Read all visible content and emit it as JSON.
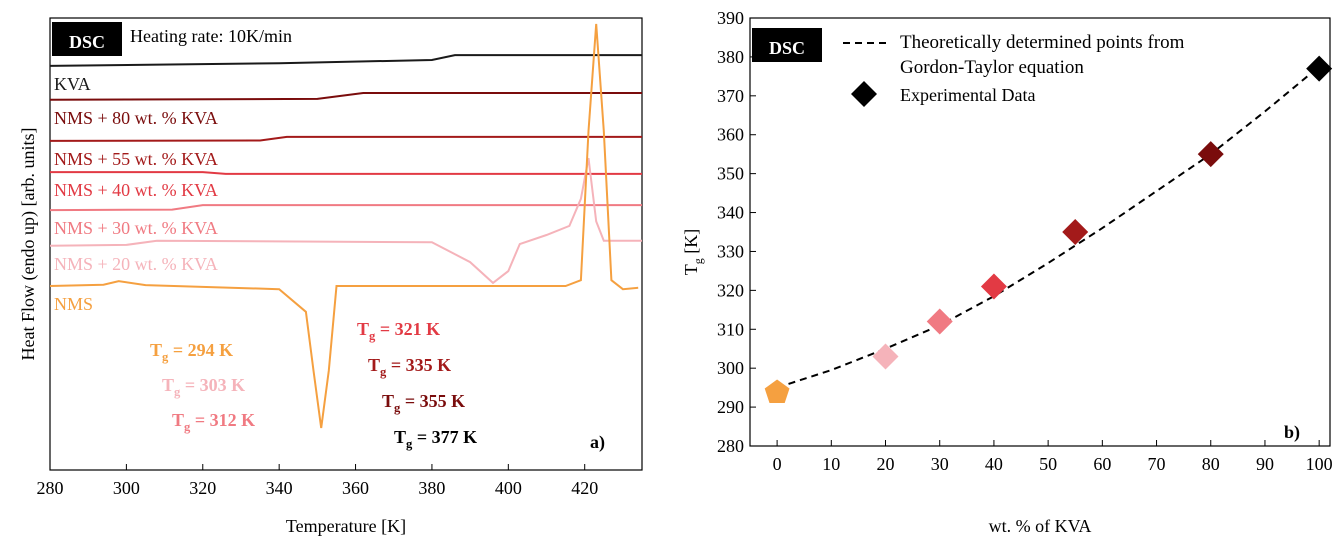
{
  "chart_data": [
    {
      "type": "line",
      "tag": "DSC",
      "note": "Heating rate: 10K/min",
      "panel_label": "a)",
      "xlabel": "Temperature [K]",
      "ylabel": "Heat Flow (endo up) [arb. units]",
      "xlim": [
        280,
        435
      ],
      "xticks": [
        280,
        300,
        320,
        340,
        360,
        380,
        400,
        420
      ],
      "ylim": [
        0,
        100
      ],
      "series": [
        {
          "name": "KVA",
          "color": "#1a1a1a",
          "x": [
            280,
            340,
            380,
            386,
            435
          ],
          "values": [
            89.4,
            90.0,
            90.7,
            91.8,
            91.8
          ]
        },
        {
          "name": "NMS + 80 wt. % KVA",
          "color": "#7a0c0c",
          "x": [
            280,
            350,
            362,
            435
          ],
          "values": [
            81.9,
            82.1,
            83.4,
            83.4
          ]
        },
        {
          "name": "NMS + 55 wt. % KVA",
          "color": "#a31a1a",
          "x": [
            280,
            335,
            342,
            435
          ],
          "values": [
            72.8,
            72.9,
            73.7,
            73.7
          ]
        },
        {
          "name": "NMS + 40 wt. % KVA",
          "color": "#e23a44",
          "x": [
            280,
            320,
            326,
            435
          ],
          "values": [
            65.9,
            65.9,
            65.5,
            65.5
          ]
        },
        {
          "name": "NMS + 30 wt. % KVA",
          "color": "#f07a82",
          "x": [
            280,
            312,
            320,
            435
          ],
          "values": [
            57.5,
            57.6,
            58.6,
            58.6
          ]
        },
        {
          "name": "NMS + 20 wt. % KVA",
          "color": "#f5b3ba",
          "x": [
            280,
            300,
            308,
            380,
            390,
            396,
            400,
            403,
            410,
            416,
            419,
            421,
            423,
            425,
            435
          ],
          "values": [
            49.6,
            49.8,
            50.7,
            50.4,
            46,
            41.4,
            44,
            50.0,
            52,
            54,
            60,
            69.0,
            55,
            50.7,
            50.7
          ]
        },
        {
          "name": "NMS",
          "color": "#f5a040",
          "x": [
            280,
            294,
            298,
            305,
            340,
            347,
            349,
            351,
            353,
            355,
            415,
            419,
            421,
            423,
            425,
            427,
            430,
            434
          ],
          "values": [
            40.7,
            41.0,
            41.8,
            40.9,
            40.0,
            35,
            22,
            9.3,
            22,
            40.7,
            40.7,
            42,
            75,
            98.7,
            75,
            42,
            40,
            40.3
          ]
        }
      ],
      "annotations": [
        {
          "symbol": "T",
          "subscript": "g",
          "text": " = 294 K",
          "color": "#f5a040"
        },
        {
          "symbol": "T",
          "subscript": "g",
          "text": " = 303 K",
          "color": "#f5b3ba"
        },
        {
          "symbol": "T",
          "subscript": "g",
          "text": " = 312 K",
          "color": "#f07a82"
        },
        {
          "symbol": "T",
          "subscript": "g",
          "text": " = 321 K",
          "color": "#e23a44"
        },
        {
          "symbol": "T",
          "subscript": "g",
          "text": " = 335 K",
          "color": "#a31a1a"
        },
        {
          "symbol": "T",
          "subscript": "g",
          "text": " = 355 K",
          "color": "#7a0c0c"
        },
        {
          "symbol": "T",
          "subscript": "g",
          "text": " = 377 K",
          "color": "#000000"
        }
      ]
    },
    {
      "type": "scatter",
      "tag": "DSC",
      "panel_label": "b)",
      "xlabel": "wt. % of KVA",
      "ylabel": {
        "symbol": "T",
        "subscript": "g",
        "text": " [K]"
      },
      "xlim": [
        -5,
        102
      ],
      "xticks": [
        0,
        10,
        20,
        30,
        40,
        50,
        60,
        70,
        80,
        90,
        100
      ],
      "ylim": [
        280,
        390
      ],
      "yticks": [
        280,
        290,
        300,
        310,
        320,
        330,
        340,
        350,
        360,
        370,
        380,
        390
      ],
      "series": [
        {
          "name": "Theoretically determined points from Gordon-Taylor equation",
          "style": "dashed",
          "color": "#000000",
          "x": [
            0,
            10,
            20,
            30,
            40,
            50,
            60,
            70,
            80,
            90,
            100
          ],
          "values": [
            295,
            299.5,
            305,
            311,
            318.5,
            327,
            336,
            345.5,
            355,
            366,
            377.5
          ]
        },
        {
          "name": "Experimental Data",
          "style": "markers",
          "color": "#000000",
          "x": [
            0,
            20,
            30,
            40,
            55,
            80,
            100
          ],
          "values": [
            294,
            303,
            312,
            321,
            335,
            355,
            377
          ],
          "colors": [
            "#f5a040",
            "#f5b3ba",
            "#f07a82",
            "#e23a44",
            "#a31a1a",
            "#7a0c0c",
            "#000000"
          ],
          "markers": [
            "pentagon",
            "diamond",
            "diamond",
            "diamond",
            "diamond",
            "diamond",
            "diamond"
          ]
        }
      ]
    }
  ]
}
